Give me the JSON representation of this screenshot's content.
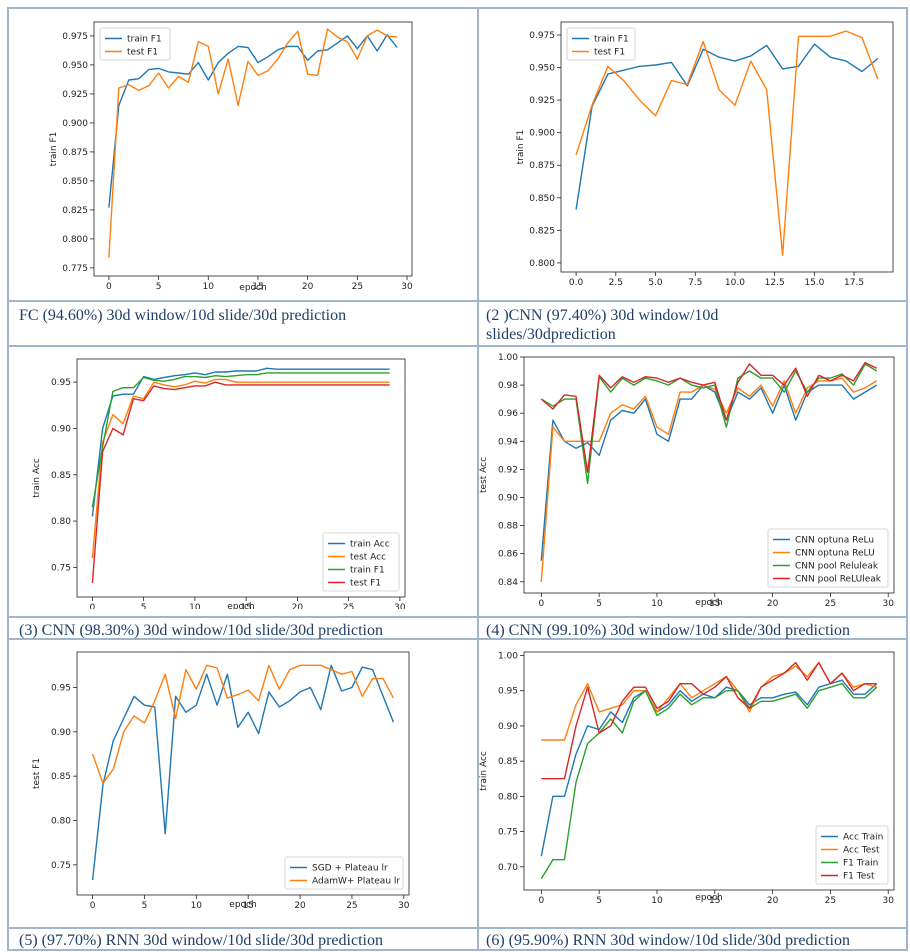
{
  "captions": [
    "FC (94.60%) 30d window/10d slide/30d prediction",
    "(2 )CNN (97.40%) 30d window/10d",
    "slides/30dprediction",
    "(3) CNN (98.30%) 30d window/10d slide/30d prediction",
    "(4) CNN (99.10%) 30d window/10d slide/30d prediction",
    "(5) (97.70%) RNN 30d window/10d slide/30d prediction",
    "(6) (95.90%) RNN 30d window/10d slide/30d prediction"
  ],
  "colors": {
    "blue": "#1f77b4",
    "orange": "#ff7f0e",
    "green": "#2ca02c",
    "red": "#d62728"
  },
  "chart_data": [
    {
      "type": "line",
      "xlabel": "epoch",
      "ylabel": "train F1",
      "xlim": [
        -1.5,
        30.5
      ],
      "ylim": [
        0.768,
        0.987
      ],
      "xticks": [
        0,
        5,
        10,
        15,
        20,
        25,
        30
      ],
      "yticks": [
        0.775,
        0.8,
        0.825,
        0.85,
        0.875,
        0.9,
        0.925,
        0.95,
        0.975
      ],
      "tickfmt": "3",
      "legend": "upper-left",
      "x": [
        0,
        1,
        2,
        3,
        4,
        5,
        6,
        7,
        8,
        9,
        10,
        11,
        12,
        13,
        14,
        15,
        16,
        17,
        18,
        19,
        20,
        21,
        22,
        23,
        24,
        25,
        26,
        27,
        28,
        29
      ],
      "series": [
        {
          "name": "train F1",
          "color": "blue",
          "values": [
            0.827,
            0.915,
            0.937,
            0.938,
            0.946,
            0.947,
            0.944,
            0.943,
            0.942,
            0.952,
            0.937,
            0.952,
            0.96,
            0.966,
            0.965,
            0.952,
            0.957,
            0.963,
            0.966,
            0.966,
            0.954,
            0.962,
            0.963,
            0.969,
            0.975,
            0.964,
            0.975,
            0.962,
            0.976,
            0.965
          ]
        },
        {
          "name": "test F1",
          "color": "orange",
          "values": [
            0.784,
            0.93,
            0.933,
            0.928,
            0.932,
            0.943,
            0.93,
            0.94,
            0.935,
            0.97,
            0.966,
            0.925,
            0.955,
            0.915,
            0.953,
            0.941,
            0.945,
            0.955,
            0.969,
            0.979,
            0.942,
            0.941,
            0.981,
            0.974,
            0.97,
            0.955,
            0.975,
            0.98,
            0.975,
            0.974
          ]
        }
      ]
    },
    {
      "type": "line",
      "xlabel": "",
      "ylabel": "train F1",
      "xlim": [
        -0.95,
        19.95
      ],
      "ylim": [
        0.793,
        0.985
      ],
      "xticks": [
        0,
        2.5,
        5,
        7.5,
        10,
        12.5,
        15,
        17.5
      ],
      "yticks": [
        0.8,
        0.825,
        0.85,
        0.875,
        0.9,
        0.925,
        0.95,
        0.975
      ],
      "tickfmt": "3",
      "xtickfmt": "1",
      "legend": "upper-left",
      "x": [
        0,
        1,
        2,
        3,
        4,
        5,
        6,
        7,
        8,
        9,
        10,
        11,
        12,
        13,
        14,
        15,
        16,
        17,
        18,
        19
      ],
      "series": [
        {
          "name": "train F1",
          "color": "blue",
          "values": [
            0.841,
            0.92,
            0.945,
            0.948,
            0.951,
            0.952,
            0.954,
            0.936,
            0.964,
            0.958,
            0.955,
            0.959,
            0.967,
            0.949,
            0.951,
            0.968,
            0.958,
            0.955,
            0.947,
            0.957
          ]
        },
        {
          "name": "test F1",
          "color": "orange",
          "values": [
            0.883,
            0.921,
            0.951,
            0.94,
            0.925,
            0.913,
            0.94,
            0.937,
            0.97,
            0.933,
            0.921,
            0.955,
            0.933,
            0.806,
            0.974,
            0.974,
            0.974,
            0.978,
            0.973,
            0.941
          ]
        }
      ]
    },
    {
      "type": "line",
      "xlabel": "epoch",
      "ylabel": "train Acc",
      "xlim": [
        -1.5,
        30.5
      ],
      "ylim": [
        0.718,
        0.975
      ],
      "xticks": [
        0,
        5,
        10,
        15,
        20,
        25,
        30
      ],
      "yticks": [
        0.75,
        0.8,
        0.85,
        0.9,
        0.95
      ],
      "tickfmt": "2",
      "legend": "lower-right",
      "x": [
        0,
        1,
        2,
        3,
        4,
        5,
        6,
        7,
        8,
        9,
        10,
        11,
        12,
        13,
        14,
        15,
        16,
        17,
        18,
        19,
        20,
        21,
        22,
        23,
        24,
        25,
        26,
        27,
        28,
        29
      ],
      "series": [
        {
          "name": "train Acc",
          "color": "blue",
          "values": [
            0.805,
            0.9,
            0.935,
            0.937,
            0.937,
            0.956,
            0.953,
            0.955,
            0.957,
            0.958,
            0.96,
            0.958,
            0.961,
            0.961,
            0.962,
            0.962,
            0.962,
            0.965,
            0.964,
            0.964,
            0.964,
            0.964,
            0.964,
            0.964,
            0.964,
            0.964,
            0.964,
            0.964,
            0.964,
            0.964
          ]
        },
        {
          "name": "test Acc",
          "color": "orange",
          "values": [
            0.76,
            0.885,
            0.915,
            0.905,
            0.935,
            0.932,
            0.95,
            0.947,
            0.945,
            0.947,
            0.951,
            0.949,
            0.953,
            0.953,
            0.95,
            0.95,
            0.95,
            0.95,
            0.95,
            0.95,
            0.95,
            0.95,
            0.95,
            0.95,
            0.95,
            0.95,
            0.95,
            0.95,
            0.95,
            0.95
          ]
        },
        {
          "name": "train F1",
          "color": "green",
          "values": [
            0.815,
            0.88,
            0.94,
            0.944,
            0.944,
            0.955,
            0.952,
            0.951,
            0.953,
            0.956,
            0.956,
            0.955,
            0.957,
            0.956,
            0.957,
            0.958,
            0.958,
            0.96,
            0.96,
            0.96,
            0.96,
            0.96,
            0.96,
            0.96,
            0.96,
            0.96,
            0.96,
            0.96,
            0.96,
            0.96
          ]
        },
        {
          "name": "test F1",
          "color": "red",
          "values": [
            0.733,
            0.875,
            0.9,
            0.893,
            0.932,
            0.93,
            0.946,
            0.943,
            0.942,
            0.944,
            0.946,
            0.946,
            0.95,
            0.947,
            0.947,
            0.947,
            0.947,
            0.947,
            0.947,
            0.947,
            0.947,
            0.947,
            0.947,
            0.947,
            0.947,
            0.947,
            0.947,
            0.947,
            0.947,
            0.947
          ]
        }
      ]
    },
    {
      "type": "line",
      "xlabel": "epoch",
      "ylabel": "test Acc",
      "xlim": [
        -1.5,
        30.5
      ],
      "ylim": [
        0.832,
        1.0
      ],
      "xticks": [
        0,
        5,
        10,
        15,
        20,
        25,
        30
      ],
      "yticks": [
        0.84,
        0.86,
        0.88,
        0.9,
        0.92,
        0.94,
        0.96,
        0.98,
        1.0
      ],
      "tickfmt": "2",
      "legend": "lower-right",
      "x": [
        0,
        1,
        2,
        3,
        4,
        5,
        6,
        7,
        8,
        9,
        10,
        11,
        12,
        13,
        14,
        15,
        16,
        17,
        18,
        19,
        20,
        21,
        22,
        23,
        24,
        25,
        26,
        27,
        28,
        29
      ],
      "series": [
        {
          "name": "CNN optuna ReLu",
          "color": "blue",
          "values": [
            0.855,
            0.955,
            0.94,
            0.935,
            0.939,
            0.93,
            0.955,
            0.962,
            0.96,
            0.97,
            0.945,
            0.94,
            0.97,
            0.97,
            0.98,
            0.975,
            0.955,
            0.975,
            0.97,
            0.978,
            0.96,
            0.98,
            0.955,
            0.975,
            0.98,
            0.98,
            0.98,
            0.97,
            0.975,
            0.98
          ]
        },
        {
          "name": "CNN optuna ReLU",
          "color": "orange",
          "values": [
            0.84,
            0.95,
            0.94,
            0.94,
            0.94,
            0.94,
            0.96,
            0.966,
            0.963,
            0.972,
            0.95,
            0.945,
            0.975,
            0.975,
            0.98,
            0.977,
            0.96,
            0.978,
            0.972,
            0.98,
            0.965,
            0.983,
            0.96,
            0.978,
            0.983,
            0.983,
            0.985,
            0.975,
            0.978,
            0.983
          ]
        },
        {
          "name": "CNN pool Reluleak",
          "color": "green",
          "values": [
            0.97,
            0.965,
            0.97,
            0.97,
            0.91,
            0.986,
            0.975,
            0.985,
            0.98,
            0.985,
            0.983,
            0.98,
            0.985,
            0.98,
            0.978,
            0.98,
            0.95,
            0.985,
            0.99,
            0.985,
            0.985,
            0.975,
            0.99,
            0.975,
            0.985,
            0.985,
            0.988,
            0.98,
            0.995,
            0.99
          ]
        },
        {
          "name": "CNN pool ReLUleak",
          "color": "red",
          "values": [
            0.97,
            0.963,
            0.973,
            0.972,
            0.918,
            0.987,
            0.978,
            0.986,
            0.982,
            0.986,
            0.985,
            0.982,
            0.985,
            0.982,
            0.98,
            0.982,
            0.955,
            0.982,
            0.995,
            0.987,
            0.987,
            0.98,
            0.992,
            0.972,
            0.987,
            0.983,
            0.987,
            0.983,
            0.996,
            0.992
          ]
        }
      ]
    },
    {
      "type": "line",
      "xlabel": "epoch",
      "ylabel": "test F1",
      "xlim": [
        -1.5,
        30.5
      ],
      "ylim": [
        0.716,
        0.99
      ],
      "xticks": [
        0,
        5,
        10,
        15,
        20,
        25,
        30
      ],
      "yticks": [
        0.75,
        0.8,
        0.85,
        0.9,
        0.95
      ],
      "tickfmt": "2",
      "legend": "lower-right",
      "x": [
        0,
        1,
        2,
        3,
        4,
        5,
        6,
        7,
        8,
        9,
        10,
        11,
        12,
        13,
        14,
        15,
        16,
        17,
        18,
        19,
        20,
        21,
        22,
        23,
        24,
        25,
        26,
        27,
        28,
        29
      ],
      "series": [
        {
          "name": "SGD + Plateau lr",
          "color": "blue",
          "values": [
            0.733,
            0.84,
            0.89,
            0.915,
            0.94,
            0.93,
            0.928,
            0.785,
            0.94,
            0.922,
            0.93,
            0.965,
            0.93,
            0.965,
            0.905,
            0.922,
            0.898,
            0.945,
            0.928,
            0.935,
            0.945,
            0.95,
            0.925,
            0.975,
            0.946,
            0.95,
            0.973,
            0.97,
            0.94,
            0.911
          ]
        },
        {
          "name": "AdamW+ Plateau lr",
          "color": "orange",
          "values": [
            0.875,
            0.842,
            0.858,
            0.9,
            0.918,
            0.91,
            0.935,
            0.965,
            0.915,
            0.97,
            0.948,
            0.975,
            0.972,
            0.938,
            0.942,
            0.947,
            0.935,
            0.975,
            0.948,
            0.97,
            0.975,
            0.975,
            0.975,
            0.97,
            0.965,
            0.968,
            0.94,
            0.96,
            0.96,
            0.938
          ]
        }
      ]
    },
    {
      "type": "line",
      "xlabel": "epoch",
      "ylabel": "train Acc",
      "xlim": [
        -1.5,
        30.5
      ],
      "ylim": [
        0.667,
        1.005
      ],
      "xticks": [
        0,
        5,
        10,
        15,
        20,
        25,
        30
      ],
      "yticks": [
        0.7,
        0.75,
        0.8,
        0.85,
        0.9,
        0.95,
        1.0
      ],
      "tickfmt": "2",
      "legend": "lower-right",
      "x": [
        0,
        1,
        2,
        3,
        4,
        5,
        6,
        7,
        8,
        9,
        10,
        11,
        12,
        13,
        14,
        15,
        16,
        17,
        18,
        19,
        20,
        21,
        22,
        23,
        24,
        25,
        26,
        27,
        28,
        29
      ],
      "series": [
        {
          "name": "Acc Train",
          "color": "blue",
          "values": [
            0.715,
            0.8,
            0.8,
            0.86,
            0.9,
            0.895,
            0.92,
            0.905,
            0.94,
            0.95,
            0.92,
            0.93,
            0.95,
            0.935,
            0.945,
            0.94,
            0.955,
            0.95,
            0.93,
            0.94,
            0.94,
            0.945,
            0.948,
            0.93,
            0.955,
            0.96,
            0.965,
            0.945,
            0.945,
            0.96
          ]
        },
        {
          "name": "Acc Test",
          "color": "orange",
          "values": [
            0.88,
            0.88,
            0.88,
            0.93,
            0.96,
            0.92,
            0.925,
            0.93,
            0.95,
            0.95,
            0.92,
            0.94,
            0.96,
            0.94,
            0.95,
            0.96,
            0.97,
            0.95,
            0.92,
            0.955,
            0.97,
            0.975,
            0.985,
            0.97,
            0.99,
            0.96,
            0.975,
            0.955,
            0.96,
            0.955
          ]
        },
        {
          "name": "F1 Train",
          "color": "green",
          "values": [
            0.683,
            0.71,
            0.71,
            0.82,
            0.875,
            0.89,
            0.91,
            0.89,
            0.935,
            0.95,
            0.915,
            0.925,
            0.945,
            0.93,
            0.94,
            0.94,
            0.95,
            0.95,
            0.925,
            0.935,
            0.935,
            0.94,
            0.945,
            0.925,
            0.95,
            0.955,
            0.96,
            0.94,
            0.94,
            0.955
          ]
        },
        {
          "name": "F1 Test",
          "color": "red",
          "values": [
            0.825,
            0.825,
            0.825,
            0.9,
            0.955,
            0.89,
            0.9,
            0.935,
            0.955,
            0.955,
            0.925,
            0.935,
            0.96,
            0.96,
            0.945,
            0.955,
            0.97,
            0.94,
            0.925,
            0.955,
            0.965,
            0.975,
            0.99,
            0.965,
            0.99,
            0.96,
            0.975,
            0.95,
            0.96,
            0.96
          ]
        }
      ]
    }
  ]
}
